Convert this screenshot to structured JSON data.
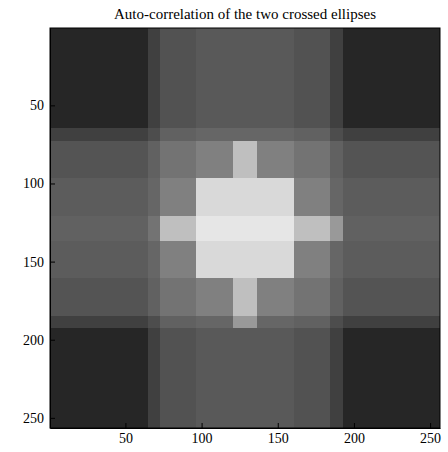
{
  "chart_data": {
    "type": "heatmap",
    "title": "Auto-correlation of the two crossed ellipses",
    "xlim": [
      0.5,
      256.5
    ],
    "ylim": [
      0.5,
      256.5
    ],
    "xticks": [
      50,
      100,
      150,
      200,
      250
    ],
    "yticks": [
      50,
      100,
      150,
      200,
      250
    ],
    "cells": [
      [
        0.15,
        0.15,
        0.15,
        0.15,
        0.15,
        0.15,
        0.15,
        0.15,
        0.25,
        0.32,
        0.32,
        0.32,
        0.35,
        0.35,
        0.35,
        0.35,
        0.35,
        0.35,
        0.35,
        0.35,
        0.32,
        0.32,
        0.32,
        0.25,
        0.15,
        0.15,
        0.15,
        0.15,
        0.15,
        0.15,
        0.15,
        0.15
      ],
      [
        0.15,
        0.15,
        0.15,
        0.15,
        0.15,
        0.15,
        0.15,
        0.15,
        0.25,
        0.32,
        0.32,
        0.32,
        0.35,
        0.35,
        0.35,
        0.35,
        0.35,
        0.35,
        0.35,
        0.35,
        0.32,
        0.32,
        0.32,
        0.25,
        0.15,
        0.15,
        0.15,
        0.15,
        0.15,
        0.15,
        0.15,
        0.15
      ],
      [
        0.15,
        0.15,
        0.15,
        0.15,
        0.15,
        0.15,
        0.15,
        0.15,
        0.25,
        0.32,
        0.32,
        0.32,
        0.35,
        0.35,
        0.35,
        0.35,
        0.35,
        0.35,
        0.35,
        0.35,
        0.32,
        0.32,
        0.32,
        0.25,
        0.15,
        0.15,
        0.15,
        0.15,
        0.15,
        0.15,
        0.15,
        0.15
      ],
      [
        0.15,
        0.15,
        0.15,
        0.15,
        0.15,
        0.15,
        0.15,
        0.15,
        0.25,
        0.32,
        0.32,
        0.32,
        0.35,
        0.35,
        0.35,
        0.35,
        0.35,
        0.35,
        0.35,
        0.35,
        0.32,
        0.32,
        0.32,
        0.25,
        0.15,
        0.15,
        0.15,
        0.15,
        0.15,
        0.15,
        0.15,
        0.15
      ],
      [
        0.15,
        0.15,
        0.15,
        0.15,
        0.15,
        0.15,
        0.15,
        0.15,
        0.25,
        0.32,
        0.32,
        0.32,
        0.35,
        0.35,
        0.35,
        0.35,
        0.35,
        0.35,
        0.35,
        0.35,
        0.32,
        0.32,
        0.32,
        0.25,
        0.15,
        0.15,
        0.15,
        0.15,
        0.15,
        0.15,
        0.15,
        0.15
      ],
      [
        0.15,
        0.15,
        0.15,
        0.15,
        0.15,
        0.15,
        0.15,
        0.15,
        0.25,
        0.32,
        0.32,
        0.32,
        0.35,
        0.35,
        0.35,
        0.35,
        0.35,
        0.35,
        0.35,
        0.35,
        0.32,
        0.32,
        0.32,
        0.25,
        0.15,
        0.15,
        0.15,
        0.15,
        0.15,
        0.15,
        0.15,
        0.15
      ],
      [
        0.15,
        0.15,
        0.15,
        0.15,
        0.15,
        0.15,
        0.15,
        0.15,
        0.25,
        0.32,
        0.32,
        0.32,
        0.35,
        0.35,
        0.35,
        0.35,
        0.35,
        0.35,
        0.35,
        0.35,
        0.32,
        0.32,
        0.32,
        0.25,
        0.15,
        0.15,
        0.15,
        0.15,
        0.15,
        0.15,
        0.15,
        0.15
      ],
      [
        0.15,
        0.15,
        0.15,
        0.15,
        0.15,
        0.15,
        0.15,
        0.15,
        0.25,
        0.32,
        0.32,
        0.32,
        0.35,
        0.35,
        0.35,
        0.35,
        0.35,
        0.35,
        0.35,
        0.35,
        0.32,
        0.32,
        0.32,
        0.25,
        0.15,
        0.15,
        0.15,
        0.15,
        0.15,
        0.15,
        0.15,
        0.15
      ],
      [
        0.25,
        0.25,
        0.25,
        0.25,
        0.25,
        0.25,
        0.25,
        0.25,
        0.3,
        0.38,
        0.38,
        0.38,
        0.4,
        0.4,
        0.4,
        0.4,
        0.4,
        0.4,
        0.4,
        0.4,
        0.38,
        0.38,
        0.38,
        0.3,
        0.25,
        0.25,
        0.25,
        0.25,
        0.25,
        0.25,
        0.25,
        0.25
      ],
      [
        0.33,
        0.33,
        0.33,
        0.33,
        0.33,
        0.33,
        0.33,
        0.33,
        0.38,
        0.45,
        0.45,
        0.45,
        0.5,
        0.5,
        0.5,
        0.75,
        0.75,
        0.5,
        0.5,
        0.5,
        0.45,
        0.45,
        0.45,
        0.38,
        0.33,
        0.33,
        0.33,
        0.33,
        0.33,
        0.33,
        0.33,
        0.33
      ],
      [
        0.33,
        0.33,
        0.33,
        0.33,
        0.33,
        0.33,
        0.33,
        0.33,
        0.38,
        0.45,
        0.45,
        0.45,
        0.5,
        0.5,
        0.5,
        0.75,
        0.75,
        0.5,
        0.5,
        0.5,
        0.45,
        0.45,
        0.45,
        0.38,
        0.33,
        0.33,
        0.33,
        0.33,
        0.33,
        0.33,
        0.33,
        0.33
      ],
      [
        0.33,
        0.33,
        0.33,
        0.33,
        0.33,
        0.33,
        0.33,
        0.33,
        0.38,
        0.45,
        0.45,
        0.45,
        0.5,
        0.5,
        0.5,
        0.75,
        0.75,
        0.5,
        0.5,
        0.5,
        0.45,
        0.45,
        0.45,
        0.38,
        0.33,
        0.33,
        0.33,
        0.33,
        0.33,
        0.33,
        0.33,
        0.33
      ],
      [
        0.36,
        0.36,
        0.36,
        0.36,
        0.36,
        0.36,
        0.36,
        0.36,
        0.4,
        0.5,
        0.5,
        0.5,
        0.85,
        0.85,
        0.85,
        0.85,
        0.85,
        0.85,
        0.85,
        0.85,
        0.5,
        0.5,
        0.5,
        0.4,
        0.36,
        0.36,
        0.36,
        0.36,
        0.36,
        0.36,
        0.36,
        0.36
      ],
      [
        0.36,
        0.36,
        0.36,
        0.36,
        0.36,
        0.36,
        0.36,
        0.36,
        0.4,
        0.5,
        0.5,
        0.5,
        0.85,
        0.85,
        0.85,
        0.85,
        0.85,
        0.85,
        0.85,
        0.85,
        0.5,
        0.5,
        0.5,
        0.4,
        0.36,
        0.36,
        0.36,
        0.36,
        0.36,
        0.36,
        0.36,
        0.36
      ],
      [
        0.36,
        0.36,
        0.36,
        0.36,
        0.36,
        0.36,
        0.36,
        0.36,
        0.4,
        0.5,
        0.5,
        0.5,
        0.85,
        0.85,
        0.85,
        0.85,
        0.85,
        0.85,
        0.85,
        0.85,
        0.5,
        0.5,
        0.5,
        0.4,
        0.36,
        0.36,
        0.36,
        0.36,
        0.36,
        0.36,
        0.36,
        0.36
      ],
      [
        0.38,
        0.38,
        0.38,
        0.38,
        0.38,
        0.38,
        0.38,
        0.38,
        0.45,
        0.75,
        0.75,
        0.75,
        0.9,
        0.9,
        0.9,
        0.9,
        0.9,
        0.9,
        0.9,
        0.9,
        0.75,
        0.75,
        0.75,
        0.6,
        0.38,
        0.38,
        0.38,
        0.38,
        0.38,
        0.38,
        0.38,
        0.38
      ],
      [
        0.38,
        0.38,
        0.38,
        0.38,
        0.38,
        0.38,
        0.38,
        0.38,
        0.45,
        0.75,
        0.75,
        0.75,
        0.9,
        0.9,
        0.9,
        0.9,
        0.9,
        0.9,
        0.9,
        0.9,
        0.75,
        0.75,
        0.75,
        0.6,
        0.38,
        0.38,
        0.38,
        0.38,
        0.38,
        0.38,
        0.38,
        0.38
      ],
      [
        0.36,
        0.36,
        0.36,
        0.36,
        0.36,
        0.36,
        0.36,
        0.36,
        0.4,
        0.5,
        0.5,
        0.5,
        0.85,
        0.85,
        0.85,
        0.85,
        0.85,
        0.85,
        0.85,
        0.85,
        0.5,
        0.5,
        0.5,
        0.4,
        0.36,
        0.36,
        0.36,
        0.36,
        0.36,
        0.36,
        0.36,
        0.36
      ],
      [
        0.36,
        0.36,
        0.36,
        0.36,
        0.36,
        0.36,
        0.36,
        0.36,
        0.4,
        0.5,
        0.5,
        0.5,
        0.85,
        0.85,
        0.85,
        0.85,
        0.85,
        0.85,
        0.85,
        0.85,
        0.5,
        0.5,
        0.5,
        0.4,
        0.36,
        0.36,
        0.36,
        0.36,
        0.36,
        0.36,
        0.36,
        0.36
      ],
      [
        0.36,
        0.36,
        0.36,
        0.36,
        0.36,
        0.36,
        0.36,
        0.36,
        0.4,
        0.5,
        0.5,
        0.5,
        0.85,
        0.85,
        0.85,
        0.85,
        0.85,
        0.85,
        0.85,
        0.85,
        0.5,
        0.5,
        0.5,
        0.4,
        0.36,
        0.36,
        0.36,
        0.36,
        0.36,
        0.36,
        0.36,
        0.36
      ],
      [
        0.33,
        0.33,
        0.33,
        0.33,
        0.33,
        0.33,
        0.33,
        0.33,
        0.38,
        0.45,
        0.45,
        0.45,
        0.5,
        0.5,
        0.5,
        0.75,
        0.75,
        0.5,
        0.5,
        0.5,
        0.45,
        0.45,
        0.45,
        0.38,
        0.33,
        0.33,
        0.33,
        0.33,
        0.33,
        0.33,
        0.33,
        0.33
      ],
      [
        0.33,
        0.33,
        0.33,
        0.33,
        0.33,
        0.33,
        0.33,
        0.33,
        0.38,
        0.45,
        0.45,
        0.45,
        0.5,
        0.5,
        0.5,
        0.75,
        0.75,
        0.5,
        0.5,
        0.5,
        0.45,
        0.45,
        0.45,
        0.38,
        0.33,
        0.33,
        0.33,
        0.33,
        0.33,
        0.33,
        0.33,
        0.33
      ],
      [
        0.33,
        0.33,
        0.33,
        0.33,
        0.33,
        0.33,
        0.33,
        0.33,
        0.38,
        0.45,
        0.45,
        0.45,
        0.5,
        0.5,
        0.5,
        0.75,
        0.75,
        0.5,
        0.5,
        0.5,
        0.45,
        0.45,
        0.45,
        0.38,
        0.33,
        0.33,
        0.33,
        0.33,
        0.33,
        0.33,
        0.33,
        0.33
      ],
      [
        0.25,
        0.25,
        0.25,
        0.25,
        0.25,
        0.25,
        0.25,
        0.25,
        0.3,
        0.38,
        0.38,
        0.38,
        0.4,
        0.4,
        0.4,
        0.6,
        0.6,
        0.4,
        0.4,
        0.4,
        0.38,
        0.38,
        0.38,
        0.3,
        0.25,
        0.25,
        0.25,
        0.25,
        0.25,
        0.25,
        0.25,
        0.25
      ],
      [
        0.15,
        0.15,
        0.15,
        0.15,
        0.15,
        0.15,
        0.15,
        0.15,
        0.25,
        0.32,
        0.32,
        0.32,
        0.35,
        0.35,
        0.35,
        0.35,
        0.35,
        0.35,
        0.35,
        0.35,
        0.32,
        0.32,
        0.32,
        0.25,
        0.15,
        0.15,
        0.15,
        0.15,
        0.15,
        0.15,
        0.15,
        0.15
      ],
      [
        0.15,
        0.15,
        0.15,
        0.15,
        0.15,
        0.15,
        0.15,
        0.15,
        0.25,
        0.32,
        0.32,
        0.32,
        0.35,
        0.35,
        0.35,
        0.35,
        0.35,
        0.35,
        0.35,
        0.35,
        0.32,
        0.32,
        0.32,
        0.25,
        0.15,
        0.15,
        0.15,
        0.15,
        0.15,
        0.15,
        0.15,
        0.15
      ],
      [
        0.15,
        0.15,
        0.15,
        0.15,
        0.15,
        0.15,
        0.15,
        0.15,
        0.25,
        0.32,
        0.32,
        0.32,
        0.35,
        0.35,
        0.35,
        0.35,
        0.35,
        0.35,
        0.35,
        0.35,
        0.32,
        0.32,
        0.32,
        0.25,
        0.15,
        0.15,
        0.15,
        0.15,
        0.15,
        0.15,
        0.15,
        0.15
      ],
      [
        0.15,
        0.15,
        0.15,
        0.15,
        0.15,
        0.15,
        0.15,
        0.15,
        0.25,
        0.32,
        0.32,
        0.32,
        0.35,
        0.35,
        0.35,
        0.35,
        0.35,
        0.35,
        0.35,
        0.35,
        0.32,
        0.32,
        0.32,
        0.25,
        0.15,
        0.15,
        0.15,
        0.15,
        0.15,
        0.15,
        0.15,
        0.15
      ],
      [
        0.15,
        0.15,
        0.15,
        0.15,
        0.15,
        0.15,
        0.15,
        0.15,
        0.25,
        0.32,
        0.32,
        0.32,
        0.35,
        0.35,
        0.35,
        0.35,
        0.35,
        0.35,
        0.35,
        0.35,
        0.32,
        0.32,
        0.32,
        0.25,
        0.15,
        0.15,
        0.15,
        0.15,
        0.15,
        0.15,
        0.15,
        0.15
      ],
      [
        0.15,
        0.15,
        0.15,
        0.15,
        0.15,
        0.15,
        0.15,
        0.15,
        0.25,
        0.32,
        0.32,
        0.32,
        0.35,
        0.35,
        0.35,
        0.35,
        0.35,
        0.35,
        0.35,
        0.35,
        0.32,
        0.32,
        0.32,
        0.25,
        0.15,
        0.15,
        0.15,
        0.15,
        0.15,
        0.15,
        0.15,
        0.15
      ],
      [
        0.15,
        0.15,
        0.15,
        0.15,
        0.15,
        0.15,
        0.15,
        0.15,
        0.25,
        0.32,
        0.32,
        0.32,
        0.35,
        0.35,
        0.35,
        0.35,
        0.35,
        0.35,
        0.35,
        0.35,
        0.32,
        0.32,
        0.32,
        0.25,
        0.15,
        0.15,
        0.15,
        0.15,
        0.15,
        0.15,
        0.15,
        0.15
      ],
      [
        0.15,
        0.15,
        0.15,
        0.15,
        0.15,
        0.15,
        0.15,
        0.15,
        0.25,
        0.32,
        0.32,
        0.32,
        0.35,
        0.35,
        0.35,
        0.35,
        0.35,
        0.35,
        0.35,
        0.35,
        0.32,
        0.32,
        0.32,
        0.25,
        0.15,
        0.15,
        0.15,
        0.15,
        0.15,
        0.15,
        0.15,
        0.15
      ]
    ]
  }
}
